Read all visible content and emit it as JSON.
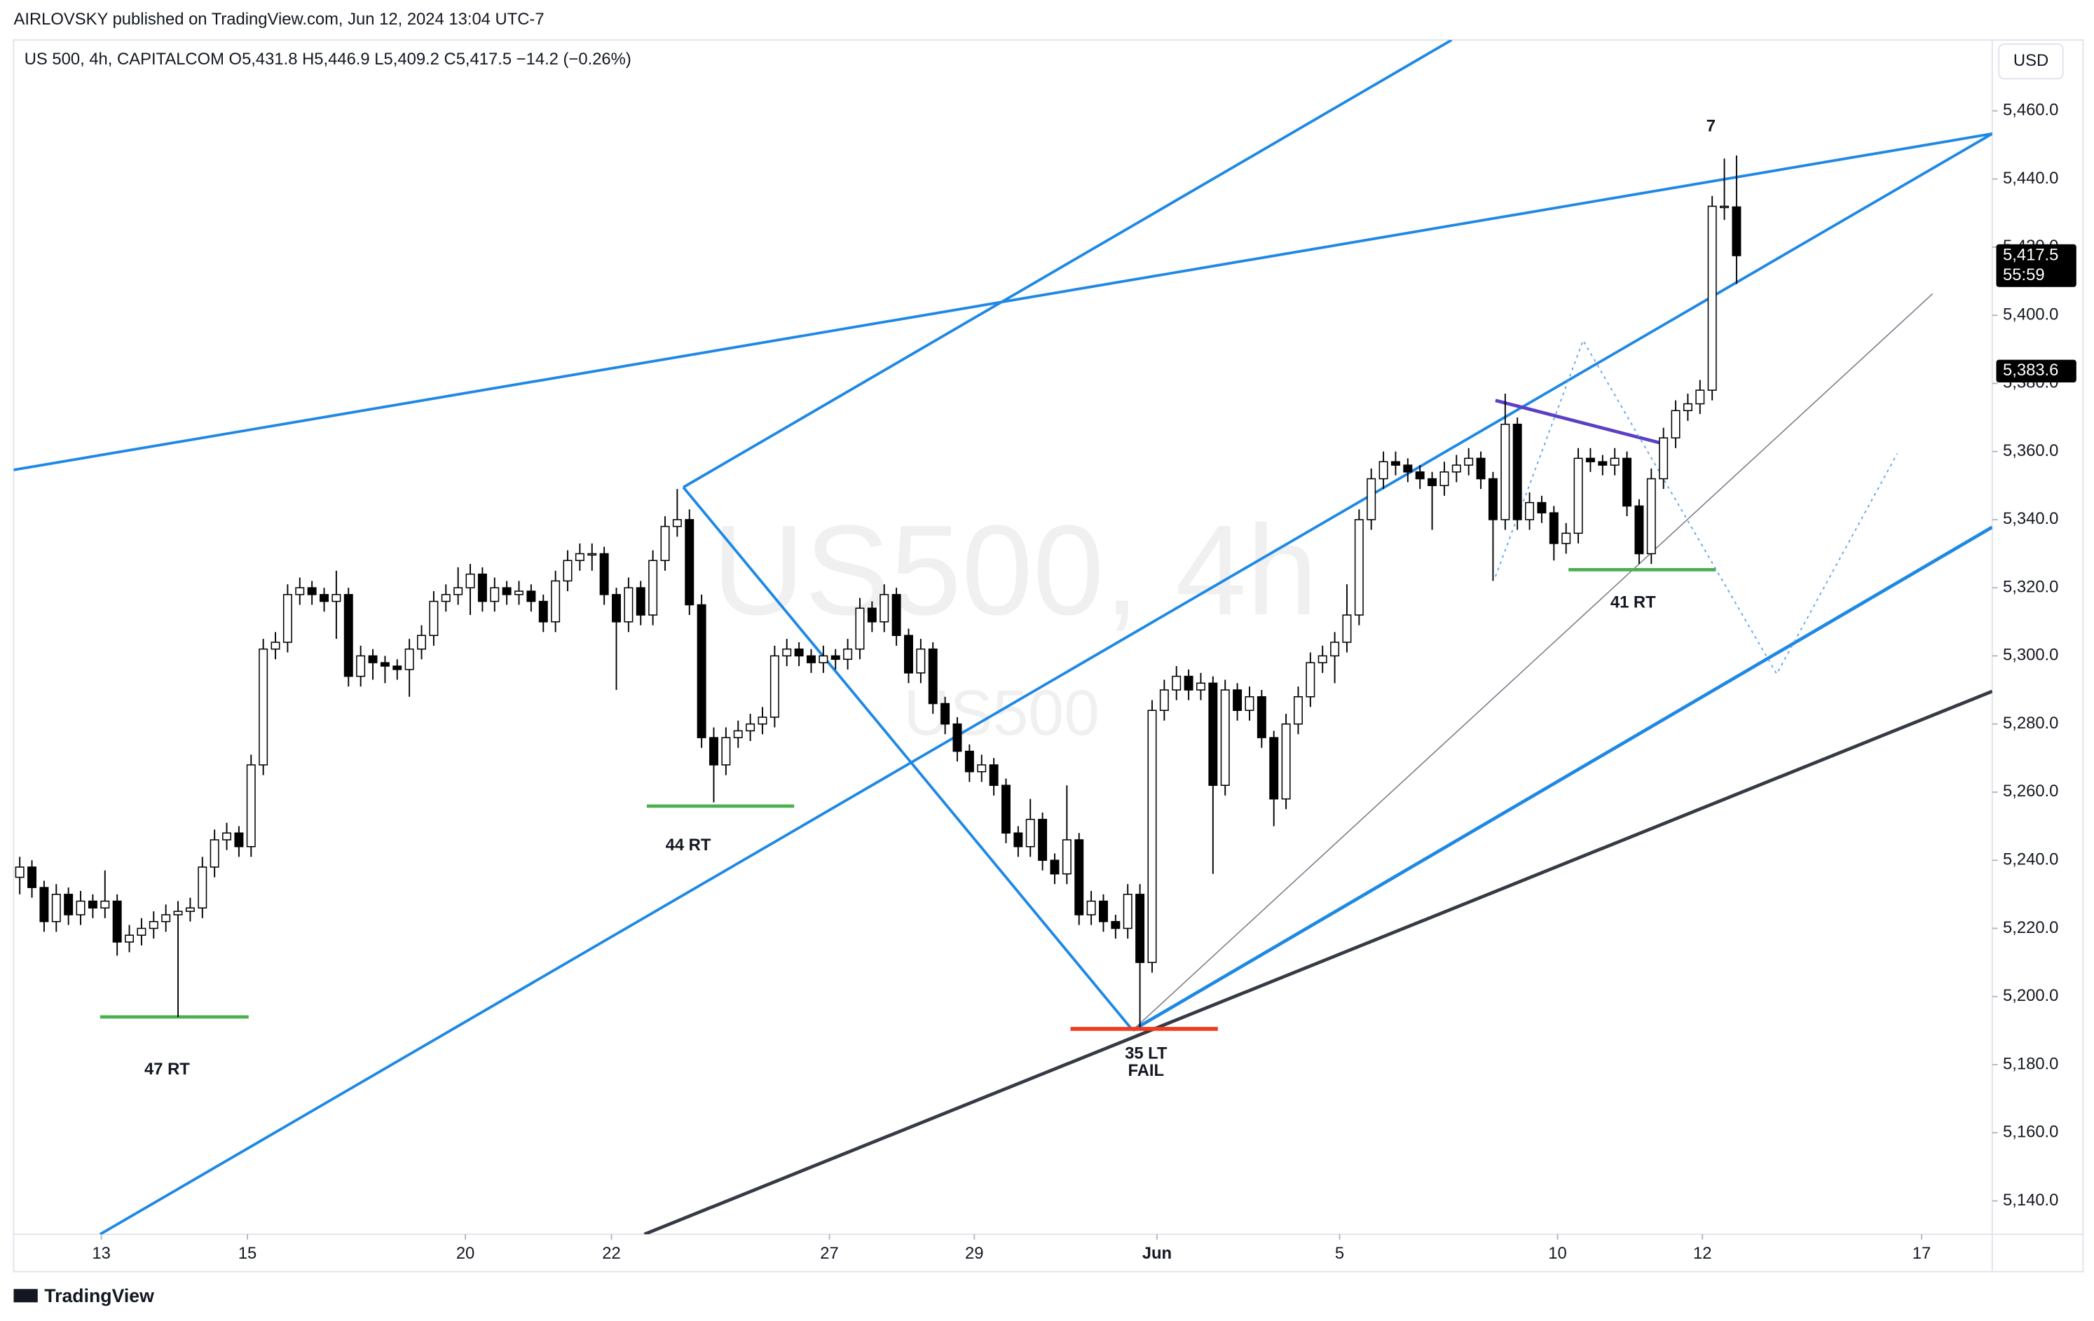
{
  "header": {
    "published": "AIRLOVSKY published on TradingView.com, Jun 12, 2024 13:04 UTC-7",
    "currency": "USD",
    "brand": "TradingView"
  },
  "chart_data": {
    "type": "candlestick",
    "legend_text": "US 500, 4h, CAPITALCOM  O5,431.8  H5,446.9  L5,409.2  C5,417.5  −14.2 (−0.26%)",
    "watermark": [
      "US500, 4h",
      "US500"
    ],
    "up_color": "#ffffff",
    "down_color": "#000000",
    "edge_color": "#000000",
    "xlim": [
      -0.5,
      162
    ],
    "xticks": [
      {
        "value": 6.7,
        "label": "13"
      },
      {
        "value": 18.7,
        "label": "15"
      },
      {
        "value": 36.6,
        "label": "20"
      },
      {
        "value": 48.6,
        "label": "22"
      },
      {
        "value": 66.5,
        "label": "27"
      },
      {
        "value": 78.4,
        "label": "29"
      },
      {
        "value": 93.4,
        "label": "Jun"
      },
      {
        "value": 108.4,
        "label": "5"
      },
      {
        "value": 126.3,
        "label": "10"
      },
      {
        "value": 138.2,
        "label": "12"
      },
      {
        "value": 156.2,
        "label": "17"
      }
    ],
    "ylim": [
      5130.2,
      5480.8
    ],
    "yticks": [
      {
        "value": 5140,
        "label": "5,140.0"
      },
      {
        "value": 5160,
        "label": "5,160.0"
      },
      {
        "value": 5180,
        "label": "5,180.0"
      },
      {
        "value": 5200,
        "label": "5,200.0"
      },
      {
        "value": 5220,
        "label": "5,220.0"
      },
      {
        "value": 5240,
        "label": "5,240.0"
      },
      {
        "value": 5260,
        "label": "5,260.0"
      },
      {
        "value": 5280,
        "label": "5,280.0"
      },
      {
        "value": 5300,
        "label": "5,300.0"
      },
      {
        "value": 5320,
        "label": "5,320.0"
      },
      {
        "value": 5340,
        "label": "5,340.0"
      },
      {
        "value": 5360,
        "label": "5,360.0"
      },
      {
        "value": 5380,
        "label": "5,380.0"
      },
      {
        "value": 5400,
        "label": "5,400.0"
      },
      {
        "value": 5420,
        "label": "5,420.0"
      },
      {
        "value": 5440,
        "label": "5,440.0"
      },
      {
        "value": 5460,
        "label": "5,460.0"
      }
    ],
    "price_tags": [
      {
        "value": 5417.5,
        "label": "5,417.5",
        "sub": "55:59",
        "color": "#000000"
      },
      {
        "value": 5383.6,
        "label": "5,383.6",
        "color": "#000000"
      }
    ],
    "ohlc": [
      [
        5235,
        5241,
        5230,
        5238
      ],
      [
        5238,
        5240,
        5229,
        5232
      ],
      [
        5232,
        5234,
        5219,
        5222
      ],
      [
        5222,
        5233,
        5219,
        5230
      ],
      [
        5230,
        5232,
        5221,
        5224
      ],
      [
        5224,
        5231,
        5221,
        5228
      ],
      [
        5228,
        5230,
        5223,
        5226
      ],
      [
        5226,
        5237,
        5223,
        5228
      ],
      [
        5228,
        5230,
        5212,
        5216
      ],
      [
        5216,
        5221,
        5213,
        5218
      ],
      [
        5218,
        5223,
        5215,
        5220
      ],
      [
        5220,
        5225,
        5217,
        5222
      ],
      [
        5222,
        5227,
        5219,
        5224
      ],
      [
        5224,
        5228,
        5194,
        5225
      ],
      [
        5225,
        5229,
        5222,
        5226
      ],
      [
        5226,
        5241,
        5223,
        5238
      ],
      [
        5238,
        5249,
        5235,
        5246
      ],
      [
        5246,
        5251,
        5243,
        5248
      ],
      [
        5248,
        5250,
        5241,
        5244
      ],
      [
        5244,
        5271,
        5241,
        5268
      ],
      [
        5268,
        5305,
        5265,
        5302
      ],
      [
        5302,
        5307,
        5299,
        5304
      ],
      [
        5304,
        5321,
        5301,
        5318
      ],
      [
        5318,
        5323,
        5315,
        5320
      ],
      [
        5320,
        5322,
        5315,
        5318
      ],
      [
        5318,
        5320,
        5313,
        5316
      ],
      [
        5316,
        5325,
        5305,
        5318
      ],
      [
        5318,
        5320,
        5291,
        5294
      ],
      [
        5294,
        5303,
        5291,
        5300
      ],
      [
        5300,
        5302,
        5293,
        5298
      ],
      [
        5298,
        5300,
        5292,
        5297
      ],
      [
        5297,
        5299,
        5293,
        5296
      ],
      [
        5296,
        5305,
        5288,
        5302
      ],
      [
        5302,
        5309,
        5299,
        5306
      ],
      [
        5306,
        5319,
        5303,
        5316
      ],
      [
        5316,
        5321,
        5313,
        5318
      ],
      [
        5318,
        5326,
        5315,
        5320
      ],
      [
        5320,
        5327,
        5312,
        5324
      ],
      [
        5324,
        5326,
        5313,
        5316
      ],
      [
        5316,
        5323,
        5313,
        5320
      ],
      [
        5320,
        5322,
        5315,
        5318
      ],
      [
        5318,
        5322,
        5315,
        5319
      ],
      [
        5319,
        5321,
        5313,
        5316
      ],
      [
        5316,
        5318,
        5307,
        5310
      ],
      [
        5310,
        5325,
        5307,
        5322
      ],
      [
        5322,
        5331,
        5319,
        5328
      ],
      [
        5328,
        5333,
        5325,
        5330
      ],
      [
        5330,
        5333,
        5325,
        5330
      ],
      [
        5330,
        5332,
        5315,
        5318
      ],
      [
        5318,
        5320,
        5290,
        5310
      ],
      [
        5310,
        5323,
        5307,
        5320
      ],
      [
        5320,
        5322,
        5309,
        5312
      ],
      [
        5312,
        5331,
        5309,
        5328
      ],
      [
        5328,
        5341,
        5325,
        5338
      ],
      [
        5338,
        5349,
        5335,
        5340
      ],
      [
        5340,
        5343,
        5312,
        5315
      ],
      [
        5315,
        5318,
        5273,
        5276
      ],
      [
        5276,
        5279,
        5257,
        5268
      ],
      [
        5268,
        5279,
        5265,
        5276
      ],
      [
        5276,
        5281,
        5273,
        5278
      ],
      [
        5278,
        5283,
        5275,
        5280
      ],
      [
        5280,
        5285,
        5277,
        5282
      ],
      [
        5282,
        5303,
        5279,
        5300
      ],
      [
        5300,
        5305,
        5297,
        5302
      ],
      [
        5302,
        5304,
        5297,
        5300
      ],
      [
        5300,
        5302,
        5295,
        5298
      ],
      [
        5298,
        5303,
        5295,
        5300
      ],
      [
        5300,
        5302,
        5296,
        5299
      ],
      [
        5299,
        5305,
        5296,
        5302
      ],
      [
        5302,
        5317,
        5299,
        5314
      ],
      [
        5314,
        5316,
        5307,
        5310
      ],
      [
        5310,
        5321,
        5307,
        5318
      ],
      [
        5318,
        5320,
        5303,
        5306
      ],
      [
        5306,
        5308,
        5292,
        5295
      ],
      [
        5295,
        5305,
        5292,
        5302
      ],
      [
        5302,
        5304,
        5283,
        5286
      ],
      [
        5286,
        5288,
        5277,
        5280
      ],
      [
        5280,
        5282,
        5269,
        5272
      ],
      [
        5272,
        5274,
        5263,
        5266
      ],
      [
        5266,
        5271,
        5263,
        5268
      ],
      [
        5268,
        5270,
        5259,
        5262
      ],
      [
        5262,
        5264,
        5245,
        5248
      ],
      [
        5248,
        5250,
        5241,
        5244
      ],
      [
        5244,
        5258,
        5241,
        5252
      ],
      [
        5252,
        5254,
        5237,
        5240
      ],
      [
        5240,
        5242,
        5233,
        5236
      ],
      [
        5236,
        5262,
        5233,
        5246
      ],
      [
        5246,
        5248,
        5221,
        5224
      ],
      [
        5224,
        5231,
        5221,
        5228
      ],
      [
        5228,
        5230,
        5219,
        5222
      ],
      [
        5222,
        5224,
        5217,
        5220
      ],
      [
        5220,
        5233,
        5217,
        5230
      ],
      [
        5230,
        5233,
        5191,
        5210
      ],
      [
        5210,
        5287,
        5207,
        5284
      ],
      [
        5284,
        5293,
        5281,
        5290
      ],
      [
        5290,
        5297,
        5287,
        5294
      ],
      [
        5294,
        5296,
        5287,
        5290
      ],
      [
        5290,
        5295,
        5287,
        5292
      ],
      [
        5292,
        5294,
        5236,
        5262
      ],
      [
        5262,
        5293,
        5259,
        5290
      ],
      [
        5290,
        5292,
        5281,
        5284
      ],
      [
        5284,
        5291,
        5281,
        5288
      ],
      [
        5288,
        5290,
        5273,
        5276
      ],
      [
        5276,
        5278,
        5250,
        5258
      ],
      [
        5258,
        5283,
        5255,
        5280
      ],
      [
        5280,
        5291,
        5277,
        5288
      ],
      [
        5288,
        5301,
        5285,
        5298
      ],
      [
        5298,
        5303,
        5295,
        5300
      ],
      [
        5300,
        5307,
        5292,
        5304
      ],
      [
        5304,
        5321,
        5301,
        5312
      ],
      [
        5312,
        5343,
        5309,
        5340
      ],
      [
        5340,
        5355,
        5337,
        5352
      ],
      [
        5352,
        5360,
        5349,
        5357
      ],
      [
        5357,
        5360,
        5353,
        5356
      ],
      [
        5356,
        5358,
        5351,
        5354
      ],
      [
        5354,
        5356,
        5349,
        5352
      ],
      [
        5352,
        5354,
        5337,
        5350
      ],
      [
        5350,
        5357,
        5347,
        5354
      ],
      [
        5354,
        5359,
        5351,
        5356
      ],
      [
        5356,
        5361,
        5353,
        5358
      ],
      [
        5358,
        5360,
        5349,
        5352
      ],
      [
        5352,
        5354,
        5322,
        5340
      ],
      [
        5340,
        5377,
        5337,
        5368
      ],
      [
        5368,
        5370,
        5337,
        5340
      ],
      [
        5340,
        5348,
        5337,
        5345
      ],
      [
        5345,
        5347,
        5339,
        5342
      ],
      [
        5342,
        5344,
        5328,
        5333
      ],
      [
        5333,
        5339,
        5330,
        5336
      ],
      [
        5336,
        5361,
        5333,
        5358
      ],
      [
        5358,
        5361,
        5354,
        5357
      ],
      [
        5357,
        5359,
        5353,
        5356
      ],
      [
        5356,
        5361,
        5353,
        5358
      ],
      [
        5358,
        5360,
        5341,
        5344
      ],
      [
        5344,
        5346,
        5327,
        5330
      ],
      [
        5330,
        5355,
        5327,
        5352
      ],
      [
        5352,
        5367,
        5349,
        5364
      ],
      [
        5364,
        5375,
        5361,
        5372
      ],
      [
        5372,
        5377,
        5369,
        5374
      ],
      [
        5374,
        5381,
        5371,
        5378
      ],
      [
        5378,
        5435,
        5375,
        5432
      ],
      [
        5432,
        5446,
        5428,
        5432
      ],
      [
        5431.8,
        5446.9,
        5409.2,
        5417.5
      ]
    ],
    "lines": [
      {
        "color": "#1e88e5",
        "width": 2,
        "points": [
          [
            -0.5,
            5354.6
          ],
          [
            162,
            5453.3
          ]
        ]
      },
      {
        "color": "#1e88e5",
        "width": 2,
        "points": [
          [
            6.6,
            5130.2
          ],
          [
            162,
            5453.3
          ]
        ]
      },
      {
        "color": "#1e88e5",
        "width": 2,
        "points": [
          [
            54.5,
            5349.5
          ],
          [
            117.6,
            5480.8
          ]
        ]
      },
      {
        "color": "#1e88e5",
        "width": 2,
        "points": [
          [
            54.5,
            5349.5
          ],
          [
            91.4,
            5190.1
          ]
        ]
      },
      {
        "color": "#1e88e5",
        "width": 2.5,
        "points": [
          [
            91.4,
            5190.1
          ],
          [
            162,
            5337.8
          ]
        ]
      },
      {
        "color": "#363a45",
        "width": 2.5,
        "points": [
          [
            51.3,
            5130.2
          ],
          [
            162,
            5289.6
          ]
        ]
      },
      {
        "color": "#787b86",
        "width": 0.8,
        "points": [
          [
            91.4,
            5190.1
          ],
          [
            157.1,
            5406.3
          ]
        ]
      },
      {
        "color": "#5b3fc4",
        "width": 2.5,
        "points": [
          [
            121.2,
            5375.0
          ],
          [
            135.2,
            5362.1
          ]
        ]
      },
      {
        "color": "#4caf50",
        "width": 2.5,
        "points": [
          [
            6.6,
            5194.0
          ],
          [
            18.8,
            5194.0
          ]
        ]
      },
      {
        "color": "#4caf50",
        "width": 2.5,
        "points": [
          [
            51.5,
            5255.9
          ],
          [
            63.6,
            5255.9
          ]
        ]
      },
      {
        "color": "#4caf50",
        "width": 2.5,
        "points": [
          [
            127.2,
            5325.3
          ],
          [
            139.3,
            5325.3
          ]
        ]
      },
      {
        "color": "#f23b1f",
        "width": 3,
        "points": [
          [
            86.3,
            5190.5
          ],
          [
            98.4,
            5190.5
          ]
        ]
      },
      {
        "color": "#64a8e8",
        "width": 1,
        "dashed": true,
        "points": [
          [
            121.2,
            5323.3
          ],
          [
            128.4,
            5392.6
          ],
          [
            144.3,
            5294.7
          ],
          [
            154.2,
            5359.4
          ]
        ]
      }
    ],
    "annotations": [
      {
        "text": "47 RT",
        "x": 12.1,
        "y": 5178.4
      },
      {
        "text": "44 RT",
        "x": 54.9,
        "y": 5244.2
      },
      {
        "text": "35 LT",
        "x": 92.5,
        "y": 5183.0
      },
      {
        "text": "FAIL",
        "x": 92.5,
        "y": 5178.0
      },
      {
        "text": "41 RT",
        "x": 132.5,
        "y": 5315.5
      },
      {
        "text": "7",
        "x": 138.9,
        "y": 5455.3
      }
    ]
  }
}
